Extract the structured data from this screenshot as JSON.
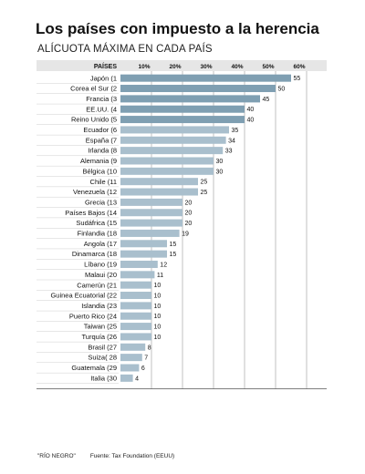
{
  "title": "Los países con impuesto a la herencia",
  "subtitle": "ALÍCUOTA MÁXIMA EN CADA PAÍS",
  "footer": {
    "credit": "\"RÍO NEGRO\"",
    "source": "Fuente: Tax Foundation (EEUU)"
  },
  "colors": {
    "top_bar": "#7f9fb2",
    "other_bar": "#a9bfcd",
    "grid": "#999999",
    "header_bg": "#e6e6e6",
    "row_line": "#cfcfcf",
    "text": "#111111"
  },
  "chart_data": {
    "type": "bar",
    "orientation": "horizontal",
    "header_label": "PAÍSES",
    "categories": [
      "Japón (1",
      "Corea el Sur (2",
      "Francia (3",
      "EE.UU. (4",
      "Reino Unido (5",
      "Ecuador (6",
      "España (7",
      "Irlanda (8",
      "Alemania (9",
      "Bélgica (10",
      "Chile (11",
      "Venezuela (12",
      "Grecia (13",
      "Países Bajos (14",
      "Sudáfrica (15",
      "Finlandia (18",
      "Angola (17",
      "Dinamarca (18",
      "Líbano (19",
      "Malaui (20",
      "Camerún (21",
      "Guinea Ecuatorial (22",
      "Islandia (23",
      "Puerto Rico (24",
      "Taiwan (25",
      "Turquía (26",
      "Brasil (27",
      "Suiza( 28",
      "Guatemala (29",
      "Italia (30"
    ],
    "values": [
      55,
      50,
      45,
      40,
      40,
      35,
      34,
      33,
      30,
      30,
      25,
      25,
      20,
      20,
      20,
      19,
      15,
      15,
      12,
      11,
      10,
      10,
      10,
      10,
      10,
      10,
      8,
      7,
      6,
      4
    ],
    "highlighted_count": 5,
    "xlim": [
      0,
      60
    ],
    "xticks": [
      "10%",
      "20%",
      "30%",
      "40%",
      "50%",
      "60%"
    ],
    "xtick_values": [
      10,
      20,
      30,
      40,
      50,
      60
    ],
    "grid": true
  }
}
